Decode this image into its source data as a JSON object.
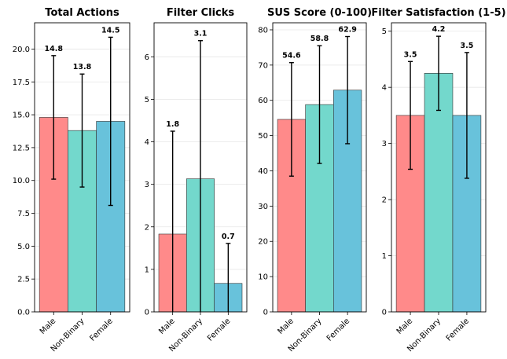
{
  "colors": {
    "Male": "#ff8a8a",
    "Non-Binary": "#73d8cc",
    "Female": "#68c2db"
  },
  "chart_data": [
    {
      "type": "bar",
      "title": "Total Actions",
      "categories": [
        "Male",
        "Non-Binary",
        "Female"
      ],
      "values": [
        14.8,
        13.8,
        14.5
      ],
      "errors": [
        4.7,
        4.3,
        6.4
      ],
      "value_labels": [
        "14.8",
        "13.8",
        "14.5"
      ],
      "ylim": [
        0,
        22
      ],
      "yticks": [
        0,
        2.5,
        5,
        7.5,
        10,
        12.5,
        15,
        17.5,
        20
      ],
      "ytick_labels": [
        "0.0",
        "2.5",
        "5.0",
        "7.5",
        "10.0",
        "12.5",
        "15.0",
        "17.5",
        "20.0"
      ],
      "grid": true
    },
    {
      "type": "bar",
      "title": "Filter Clicks",
      "categories": [
        "Male",
        "Non-Binary",
        "Female"
      ],
      "values": [
        1.83,
        3.13,
        0.67
      ],
      "errors": [
        2.42,
        3.25,
        0.94
      ],
      "value_labels": [
        "1.8",
        "3.1",
        "0.7"
      ],
      "ylim": [
        0,
        6.8
      ],
      "yticks": [
        0,
        1,
        2,
        3,
        4,
        5,
        6
      ],
      "ytick_labels": [
        "0",
        "1",
        "2",
        "3",
        "4",
        "5",
        "6"
      ],
      "grid": true
    },
    {
      "type": "bar",
      "title": "SUS Score (0-100)",
      "categories": [
        "Male",
        "Non-Binary",
        "Female"
      ],
      "values": [
        54.6,
        58.8,
        62.9
      ],
      "errors": [
        16.1,
        16.7,
        15.2
      ],
      "value_labels": [
        "54.6",
        "58.8",
        "62.9"
      ],
      "ylim": [
        0,
        82
      ],
      "yticks": [
        0,
        10,
        20,
        30,
        40,
        50,
        60,
        70,
        80
      ],
      "ytick_labels": [
        "0",
        "10",
        "20",
        "30",
        "40",
        "50",
        "60",
        "70",
        "80"
      ],
      "grid": true
    },
    {
      "type": "bar",
      "title": "Filter Satisfaction (1-5)",
      "categories": [
        "Male",
        "Non-Binary",
        "Female"
      ],
      "values": [
        3.5,
        4.25,
        3.5
      ],
      "errors": [
        0.96,
        0.66,
        1.12
      ],
      "value_labels": [
        "3.5",
        "4.2",
        "3.5"
      ],
      "ylim": [
        0,
        5.15
      ],
      "yticks": [
        0,
        1,
        2,
        3,
        4,
        5
      ],
      "ytick_labels": [
        "0",
        "1",
        "2",
        "3",
        "4",
        "5"
      ],
      "grid": true
    }
  ]
}
